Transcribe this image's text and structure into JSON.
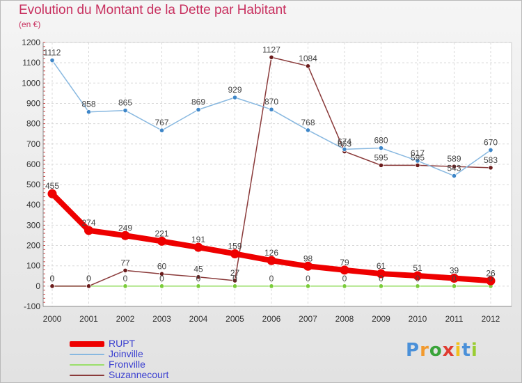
{
  "title": "Evolution du Montant de la Dette par Habitant",
  "subtitle": "(en €)",
  "chart_data": {
    "type": "line",
    "x": [
      "2000",
      "2001",
      "2002",
      "2003",
      "2004",
      "2005",
      "2006",
      "2007",
      "2008",
      "2009",
      "2010",
      "2011",
      "2012"
    ],
    "ylim": [
      -100,
      1200
    ],
    "yticks": [
      -100,
      0,
      100,
      200,
      300,
      400,
      500,
      600,
      700,
      800,
      900,
      1000,
      1100,
      1200
    ],
    "grid": true,
    "legend": "bottom-left",
    "series": [
      {
        "name": "RUPT",
        "color": "#ee0000",
        "width": 8,
        "marker": "#ee0000",
        "values": [
          455,
          274,
          249,
          221,
          191,
          159,
          126,
          98,
          79,
          61,
          51,
          39,
          26
        ]
      },
      {
        "name": "Joinville",
        "color": "#88b8e0",
        "width": 1.5,
        "marker": "#3e86c8",
        "values": [
          1112,
          858,
          865,
          767,
          869,
          929,
          870,
          768,
          674,
          680,
          617,
          543,
          670
        ]
      },
      {
        "name": "Fronville",
        "color": "#9adf6a",
        "width": 1.5,
        "marker": "#7acc3a",
        "values": [
          0,
          0,
          0,
          0,
          0,
          0,
          0,
          0,
          0,
          0,
          0,
          0,
          0
        ]
      },
      {
        "name": "Suzannecourt",
        "color": "#8a3a3a",
        "width": 1.5,
        "marker": "#6b1c1c",
        "values": [
          0,
          0,
          77,
          60,
          45,
          27,
          1127,
          1084,
          663,
          595,
          595,
          589,
          583
        ]
      }
    ]
  },
  "logo": {
    "letters": [
      "P",
      "r",
      "o",
      "x",
      "i",
      "t",
      "i"
    ],
    "colors": [
      "#4a90d9",
      "#f29a2e",
      "#3aa43a",
      "#e03c31",
      "#f2c21e",
      "#4a90d9",
      "#9acd32"
    ]
  }
}
